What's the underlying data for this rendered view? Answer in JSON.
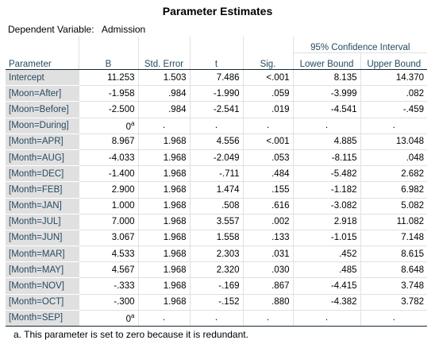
{
  "title": "Parameter Estimates",
  "dependent": {
    "label": "Dependent Variable:",
    "value": "Admission"
  },
  "headers": {
    "parameter": "Parameter",
    "b": "B",
    "se": "Std. Error",
    "t": "t",
    "sig": "Sig.",
    "ci": "95% Confidence Interval",
    "lower": "Lower Bound",
    "upper": "Upper Bound"
  },
  "rows": [
    {
      "param": "Intercept",
      "b": "11.253",
      "se": "1.503",
      "t": "7.486",
      "sig": "<.001",
      "lower": "8.135",
      "upper": "14.370"
    },
    {
      "param": "[Moon=After]",
      "b": "-1.958",
      "se": ".984",
      "t": "-1.990",
      "sig": ".059",
      "lower": "-3.999",
      "upper": ".082"
    },
    {
      "param": "[Moon=Before]",
      "b": "-2.500",
      "se": ".984",
      "t": "-2.541",
      "sig": ".019",
      "lower": "-4.541",
      "upper": "-.459"
    },
    {
      "param": "[Moon=During]",
      "b": "0",
      "sup": "a",
      "se": ".",
      "t": ".",
      "sig": ".",
      "lower": ".",
      "upper": "."
    },
    {
      "param": "[Month=APR]",
      "b": "8.967",
      "se": "1.968",
      "t": "4.556",
      "sig": "<.001",
      "lower": "4.885",
      "upper": "13.048"
    },
    {
      "param": "[Month=AUG]",
      "b": "-4.033",
      "se": "1.968",
      "t": "-2.049",
      "sig": ".053",
      "lower": "-8.115",
      "upper": ".048"
    },
    {
      "param": "[Month=DEC]",
      "b": "-1.400",
      "se": "1.968",
      "t": "-.711",
      "sig": ".484",
      "lower": "-5.482",
      "upper": "2.682"
    },
    {
      "param": "[Month=FEB]",
      "b": "2.900",
      "se": "1.968",
      "t": "1.474",
      "sig": ".155",
      "lower": "-1.182",
      "upper": "6.982"
    },
    {
      "param": "[Month=JAN]",
      "b": "1.000",
      "se": "1.968",
      "t": ".508",
      "sig": ".616",
      "lower": "-3.082",
      "upper": "5.082"
    },
    {
      "param": "[Month=JUL]",
      "b": "7.000",
      "se": "1.968",
      "t": "3.557",
      "sig": ".002",
      "lower": "2.918",
      "upper": "11.082"
    },
    {
      "param": "[Month=JUN]",
      "b": "3.067",
      "se": "1.968",
      "t": "1.558",
      "sig": ".133",
      "lower": "-1.015",
      "upper": "7.148"
    },
    {
      "param": "[Month=MAR]",
      "b": "4.533",
      "se": "1.968",
      "t": "2.303",
      "sig": ".031",
      "lower": ".452",
      "upper": "8.615"
    },
    {
      "param": "[Month=MAY]",
      "b": "4.567",
      "se": "1.968",
      "t": "2.320",
      "sig": ".030",
      "lower": ".485",
      "upper": "8.648"
    },
    {
      "param": "[Month=NOV]",
      "b": "-.333",
      "se": "1.968",
      "t": "-.169",
      "sig": ".867",
      "lower": "-4.415",
      "upper": "3.748"
    },
    {
      "param": "[Month=OCT]",
      "b": "-.300",
      "se": "1.968",
      "t": "-.152",
      "sig": ".880",
      "lower": "-4.382",
      "upper": "3.782"
    },
    {
      "param": "[Month=SEP]",
      "b": "0",
      "sup": "a",
      "se": ".",
      "t": ".",
      "sig": ".",
      "lower": ".",
      "upper": "."
    }
  ],
  "footnote": "a. This parameter is set to zero because it is redundant."
}
